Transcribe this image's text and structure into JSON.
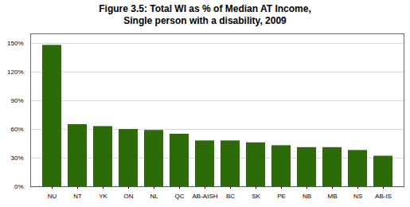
{
  "chart_data": {
    "type": "bar",
    "title": "Figure 3.5: Total WI as % of Median AT Income,\nSingle person with a disability, 2009",
    "categories": [
      "NU",
      "NT",
      "YK",
      "ON",
      "NL",
      "QC",
      "AB-AISH",
      "BC",
      "SK",
      "PE",
      "NB",
      "MB",
      "NS",
      "AB-IS"
    ],
    "values": [
      148,
      65,
      63,
      60,
      59,
      55,
      48,
      48,
      46,
      43,
      41,
      41,
      38,
      32
    ],
    "color": "#2d6a0a",
    "ylim": [
      0,
      160
    ],
    "yticks": [
      {
        "value": 0,
        "label": "0%"
      },
      {
        "value": 30,
        "label": "30%"
      },
      {
        "value": 60,
        "label": "60%"
      },
      {
        "value": 90,
        "label": "90%"
      },
      {
        "value": 120,
        "label": "120%"
      },
      {
        "value": 150,
        "label": "150%"
      }
    ],
    "grid": true
  }
}
